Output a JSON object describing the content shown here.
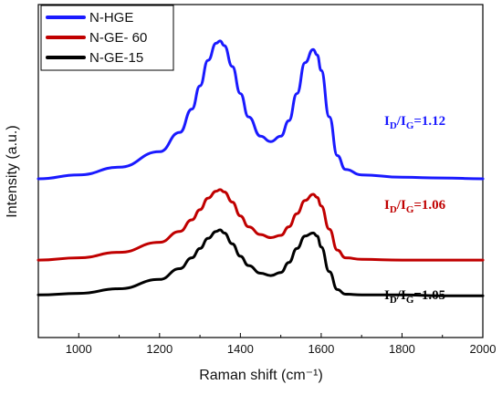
{
  "chart_data": {
    "type": "line",
    "title": "",
    "xlabel": "Raman shift (cm⁻¹)",
    "ylabel": "Intensity (a.u.)",
    "xlim": [
      900,
      2000
    ],
    "x_ticks": [
      "1000",
      "1200",
      "1400",
      "1600",
      "1800",
      "2000"
    ],
    "y_ticks_shown": false,
    "grid": false,
    "legend_position": "top-left",
    "series": [
      {
        "name": "N-HGE",
        "color": "#1a1aff",
        "x": [
          900,
          1000,
          1100,
          1200,
          1250,
          1280,
          1300,
          1320,
          1340,
          1350,
          1360,
          1380,
          1400,
          1420,
          1450,
          1475,
          1500,
          1520,
          1540,
          1560,
          1580,
          1590,
          1600,
          1620,
          1640,
          1660,
          1700,
          1800,
          1900,
          2000
        ],
        "y": [
          1.5,
          1.55,
          1.65,
          1.85,
          2.1,
          2.4,
          2.7,
          3.03,
          3.25,
          3.28,
          3.22,
          2.95,
          2.6,
          2.3,
          2.05,
          1.98,
          2.05,
          2.25,
          2.6,
          3.0,
          3.17,
          3.1,
          2.9,
          2.3,
          1.8,
          1.62,
          1.55,
          1.52,
          1.51,
          1.5
        ],
        "annotation": {
          "label_sub": "D",
          "label_sub2": "G",
          "value": "1.12"
        }
      },
      {
        "name": "N-GE- 60",
        "color": "#c00000",
        "x": [
          900,
          1000,
          1100,
          1200,
          1250,
          1280,
          1300,
          1320,
          1340,
          1350,
          1360,
          1380,
          1400,
          1420,
          1450,
          1475,
          1500,
          1520,
          1540,
          1560,
          1580,
          1590,
          1600,
          1620,
          1640,
          1660,
          1700,
          1800,
          1900,
          2000
        ],
        "y": [
          0.45,
          0.48,
          0.55,
          0.68,
          0.82,
          0.97,
          1.1,
          1.25,
          1.34,
          1.36,
          1.33,
          1.2,
          1.02,
          0.88,
          0.78,
          0.74,
          0.77,
          0.88,
          1.05,
          1.22,
          1.3,
          1.26,
          1.15,
          0.85,
          0.58,
          0.48,
          0.46,
          0.45,
          0.45,
          0.45
        ],
        "annotation": {
          "label_sub": "D",
          "label_sub2": "G",
          "value": "1.06"
        }
      },
      {
        "name": "N-GE-15",
        "color": "#000000",
        "x": [
          900,
          1000,
          1100,
          1200,
          1250,
          1280,
          1300,
          1320,
          1340,
          1350,
          1360,
          1380,
          1400,
          1420,
          1450,
          1475,
          1500,
          1520,
          1540,
          1560,
          1580,
          1590,
          1600,
          1620,
          1640,
          1660,
          1700,
          1800,
          1900,
          2000
        ],
        "y": [
          0.0,
          0.02,
          0.08,
          0.2,
          0.34,
          0.48,
          0.6,
          0.73,
          0.82,
          0.84,
          0.8,
          0.66,
          0.5,
          0.38,
          0.28,
          0.25,
          0.29,
          0.42,
          0.6,
          0.76,
          0.8,
          0.76,
          0.62,
          0.3,
          0.07,
          0.01,
          0.0,
          0.0,
          -0.01,
          -0.01
        ],
        "annotation": {
          "label_sub": "D",
          "label_sub2": "G",
          "value": "1.05"
        }
      }
    ]
  }
}
